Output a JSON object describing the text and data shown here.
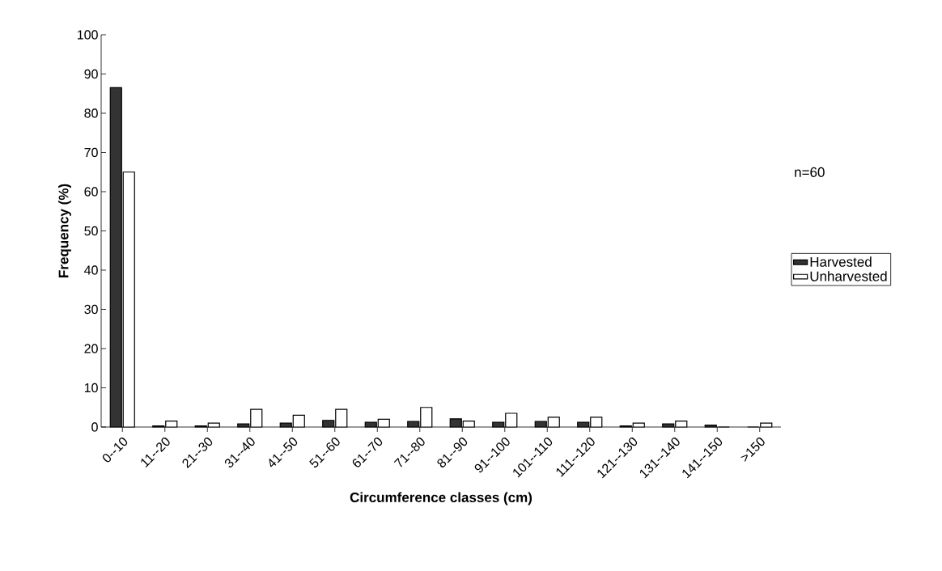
{
  "chart_data": {
    "type": "bar",
    "xlabel": "Circumference classes (cm)",
    "ylabel": "Frequency (%)",
    "legend_title": "n=60",
    "categories": [
      "0--10",
      "11--20",
      "21--30",
      "31--40",
      "41--50",
      "51--60",
      "61--70",
      "71--80",
      "81--90",
      "91--100",
      "101--110",
      "111--120",
      "121--130",
      "131--140",
      "141--150",
      ">150"
    ],
    "series": [
      {
        "name": "Harvested",
        "color": "#333333",
        "values": [
          86.5,
          0.3,
          0.3,
          0.8,
          1,
          1.7,
          1.2,
          1.4,
          2.1,
          1.2,
          1.4,
          1.2,
          0.3,
          0.8,
          0.5,
          0
        ]
      },
      {
        "name": "Unharvested",
        "color": "#ffffff",
        "values": [
          65,
          1.5,
          1,
          4.5,
          3,
          4.5,
          2,
          5,
          1.5,
          3.5,
          2.5,
          2.5,
          1,
          1.5,
          0,
          1
        ]
      }
    ],
    "ylim": [
      0,
      100
    ],
    "yticks": [
      0,
      10,
      20,
      30,
      40,
      50,
      60,
      70,
      80,
      90,
      100
    ],
    "grid": false,
    "legend": "right"
  }
}
